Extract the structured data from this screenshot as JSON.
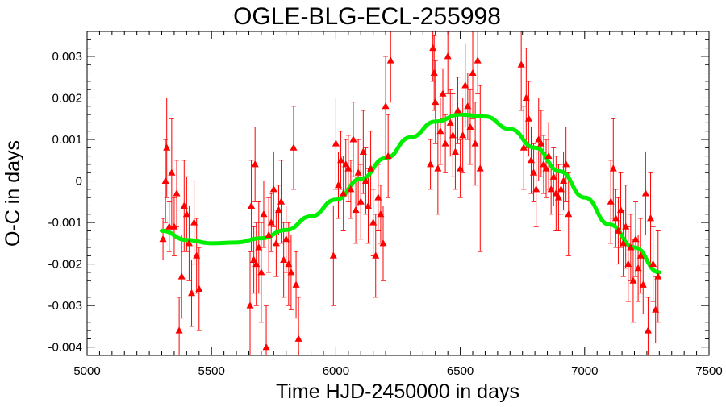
{
  "chart_data": {
    "type": "scatter",
    "title": "OGLE-BLG-ECL-255998",
    "xlabel": "Time HJD-2450000 in days",
    "ylabel": "O-C in days",
    "xlim": [
      5000,
      7500
    ],
    "ylim": [
      -0.0042,
      0.0036
    ],
    "xticks": [
      5000,
      5500,
      6000,
      6500,
      7000,
      7500
    ],
    "xtick_labels": [
      "5000",
      "5500",
      "6000",
      "6500",
      "7000",
      "7500"
    ],
    "yticks": [
      -0.004,
      -0.003,
      -0.002,
      -0.001,
      0,
      0.001,
      0.002,
      0.003
    ],
    "ytick_labels": [
      "-0.004",
      "-0.003",
      "-0.002",
      "-0.001",
      "0",
      "0.001",
      "0.002",
      "0.003"
    ],
    "grid": false,
    "colors": {
      "points": "#ff0000",
      "fit": "#00ee00",
      "axes": "#000000"
    },
    "points": [
      [
        5305,
        -0.0014,
        0.0005
      ],
      [
        5315,
        0.0,
        0.001
      ],
      [
        5320,
        0.0008,
        0.0012
      ],
      [
        5330,
        -0.0011,
        0.0006
      ],
      [
        5340,
        0.0002,
        0.0013
      ],
      [
        5350,
        -0.0011,
        0.0007
      ],
      [
        5360,
        -0.0003,
        0.0008
      ],
      [
        5370,
        -0.0036,
        0.0008
      ],
      [
        5380,
        -0.0023,
        0.001
      ],
      [
        5390,
        -0.0006,
        0.0011
      ],
      [
        5400,
        -0.0008,
        0.0009
      ],
      [
        5410,
        -0.0015,
        0.0009
      ],
      [
        5420,
        -0.0027,
        0.0008
      ],
      [
        5430,
        -0.001,
        0.001
      ],
      [
        5440,
        -0.0018,
        0.0009
      ],
      [
        5450,
        -0.0026,
        0.001
      ],
      [
        5655,
        -0.003,
        0.0013
      ],
      [
        5660,
        -0.0006,
        0.0011
      ],
      [
        5670,
        -0.0019,
        0.0008
      ],
      [
        5675,
        0.0004,
        0.0009
      ],
      [
        5680,
        -0.002,
        0.001
      ],
      [
        5690,
        -0.0016,
        0.0011
      ],
      [
        5700,
        -0.0022,
        0.0012
      ],
      [
        5710,
        -0.0008,
        0.0008
      ],
      [
        5720,
        -0.004,
        0.001
      ],
      [
        5730,
        -0.0013,
        0.0009
      ],
      [
        5740,
        -0.001,
        0.0007
      ],
      [
        5750,
        -0.0002,
        0.0009
      ],
      [
        5760,
        -0.0015,
        0.0008
      ],
      [
        5770,
        -0.0007,
        0.0006
      ],
      [
        5780,
        -0.0005,
        0.001
      ],
      [
        5790,
        -0.0019,
        0.0009
      ],
      [
        5800,
        -0.0014,
        0.0008
      ],
      [
        5810,
        -0.002,
        0.001
      ],
      [
        5820,
        -0.0022,
        0.0009
      ],
      [
        5830,
        0.0008,
        0.001
      ],
      [
        5840,
        -0.0025,
        0.0008
      ],
      [
        5850,
        -0.0038,
        0.001
      ],
      [
        5990,
        -0.0018,
        0.0012
      ],
      [
        6000,
        0.0009,
        0.0011
      ],
      [
        6010,
        -0.0001,
        0.0008
      ],
      [
        6020,
        0.0005,
        0.0007
      ],
      [
        6030,
        -0.0003,
        0.0009
      ],
      [
        6040,
        0.0004,
        0.0006
      ],
      [
        6050,
        0.0003,
        0.0008
      ],
      [
        6060,
        -0.0002,
        0.0007
      ],
      [
        6070,
        0.001,
        0.0009
      ],
      [
        6080,
        -0.0007,
        0.0008
      ],
      [
        6090,
        0.0002,
        0.0008
      ],
      [
        6100,
        -0.0005,
        0.0009
      ],
      [
        6110,
        0.0007,
        0.001
      ],
      [
        6120,
        0.0,
        0.0008
      ],
      [
        6130,
        -0.0006,
        0.0009
      ],
      [
        6140,
        0.0003,
        0.0009
      ],
      [
        6150,
        -0.001,
        0.0008
      ],
      [
        6160,
        -0.0018,
        0.001
      ],
      [
        6170,
        -0.0004,
        0.0008
      ],
      [
        6180,
        -0.0008,
        0.0007
      ],
      [
        6190,
        -0.0015,
        0.0009
      ],
      [
        6200,
        0.0018,
        0.0012
      ],
      [
        6210,
        0.0006,
        0.001
      ],
      [
        6220,
        0.0029,
        0.001
      ],
      [
        6380,
        0.0004,
        0.0006
      ],
      [
        6390,
        0.0032,
        0.0008
      ],
      [
        6395,
        0.0026,
        0.0009
      ],
      [
        6400,
        0.0019,
        0.001
      ],
      [
        6410,
        0.0003,
        0.0011
      ],
      [
        6420,
        0.0012,
        0.0008
      ],
      [
        6430,
        0.0021,
        0.0006
      ],
      [
        6440,
        0.0009,
        0.0007
      ],
      [
        6450,
        0.003,
        0.0009
      ],
      [
        6460,
        0.0014,
        0.0008
      ],
      [
        6470,
        0.0011,
        0.001
      ],
      [
        6480,
        0.0007,
        0.0009
      ],
      [
        6490,
        0.0017,
        0.0008
      ],
      [
        6500,
        0.0003,
        0.0007
      ],
      [
        6510,
        0.0011,
        0.0009
      ],
      [
        6520,
        0.0023,
        0.001
      ],
      [
        6530,
        0.0018,
        0.0008
      ],
      [
        6540,
        0.0013,
        0.0009
      ],
      [
        6550,
        0.0026,
        0.0011
      ],
      [
        6560,
        0.0009,
        0.001
      ],
      [
        6570,
        0.0029,
        0.0008
      ],
      [
        6580,
        0.0003,
        0.002
      ],
      [
        6745,
        0.0028,
        0.0011
      ],
      [
        6755,
        0.0008,
        0.001
      ],
      [
        6765,
        0.002,
        0.0012
      ],
      [
        6775,
        0.0015,
        0.0009
      ],
      [
        6785,
        0.0005,
        0.0008
      ],
      [
        6795,
        0.0002,
        0.0007
      ],
      [
        6805,
        -0.0002,
        0.0009
      ],
      [
        6815,
        0.001,
        0.001
      ],
      [
        6825,
        0.0009,
        0.0008
      ],
      [
        6835,
        0.0004,
        0.0007
      ],
      [
        6845,
        0.0003,
        0.0007
      ],
      [
        6855,
        0.0006,
        0.0008
      ],
      [
        6865,
        -0.0002,
        0.0006
      ],
      [
        6875,
        0.0001,
        0.0007
      ],
      [
        6885,
        -0.0003,
        0.0009
      ],
      [
        6895,
        -0.0004,
        0.0008
      ],
      [
        6905,
        -0.0002,
        0.0006
      ],
      [
        6915,
        0.0,
        0.0007
      ],
      [
        6925,
        0.0004,
        0.0009
      ],
      [
        6935,
        -0.0008,
        0.001
      ],
      [
        7105,
        -0.0005,
        0.001
      ],
      [
        7115,
        0.0003,
        0.0012
      ],
      [
        7125,
        -0.0009,
        0.0007
      ],
      [
        7135,
        -0.0012,
        0.0008
      ],
      [
        7145,
        -0.0007,
        0.0009
      ],
      [
        7155,
        -0.0015,
        0.0008
      ],
      [
        7165,
        -0.0011,
        0.001
      ],
      [
        7175,
        -0.002,
        0.0009
      ],
      [
        7185,
        -0.0016,
        0.0008
      ],
      [
        7195,
        -0.0024,
        0.001
      ],
      [
        7205,
        -0.0014,
        0.0009
      ],
      [
        7215,
        -0.0021,
        0.0008
      ],
      [
        7225,
        -0.0018,
        0.0009
      ],
      [
        7235,
        -0.0025,
        0.0007
      ],
      [
        7245,
        -0.0003,
        0.001
      ],
      [
        7255,
        -0.0036,
        0.0008
      ],
      [
        7265,
        -0.0009,
        0.0011
      ],
      [
        7275,
        -0.002,
        0.0009
      ],
      [
        7285,
        -0.0031,
        0.0008
      ],
      [
        7295,
        -0.0023,
        0.0011
      ]
    ],
    "fit": {
      "label": "",
      "x": [
        5300,
        5400,
        5500,
        5600,
        5700,
        5800,
        5900,
        6000,
        6100,
        6200,
        6300,
        6400,
        6500,
        6600,
        6700,
        6800,
        6900,
        7000,
        7100,
        7200,
        7300
      ],
      "y": [
        -0.0012,
        -0.00142,
        -0.0015,
        -0.00148,
        -0.00138,
        -0.00118,
        -0.00085,
        -0.00045,
        5e-05,
        0.00055,
        0.00105,
        0.00143,
        0.0016,
        0.00155,
        0.00125,
        0.0008,
        0.00023,
        -0.0004,
        -0.00105,
        -0.0016,
        -0.0022
      ]
    }
  }
}
